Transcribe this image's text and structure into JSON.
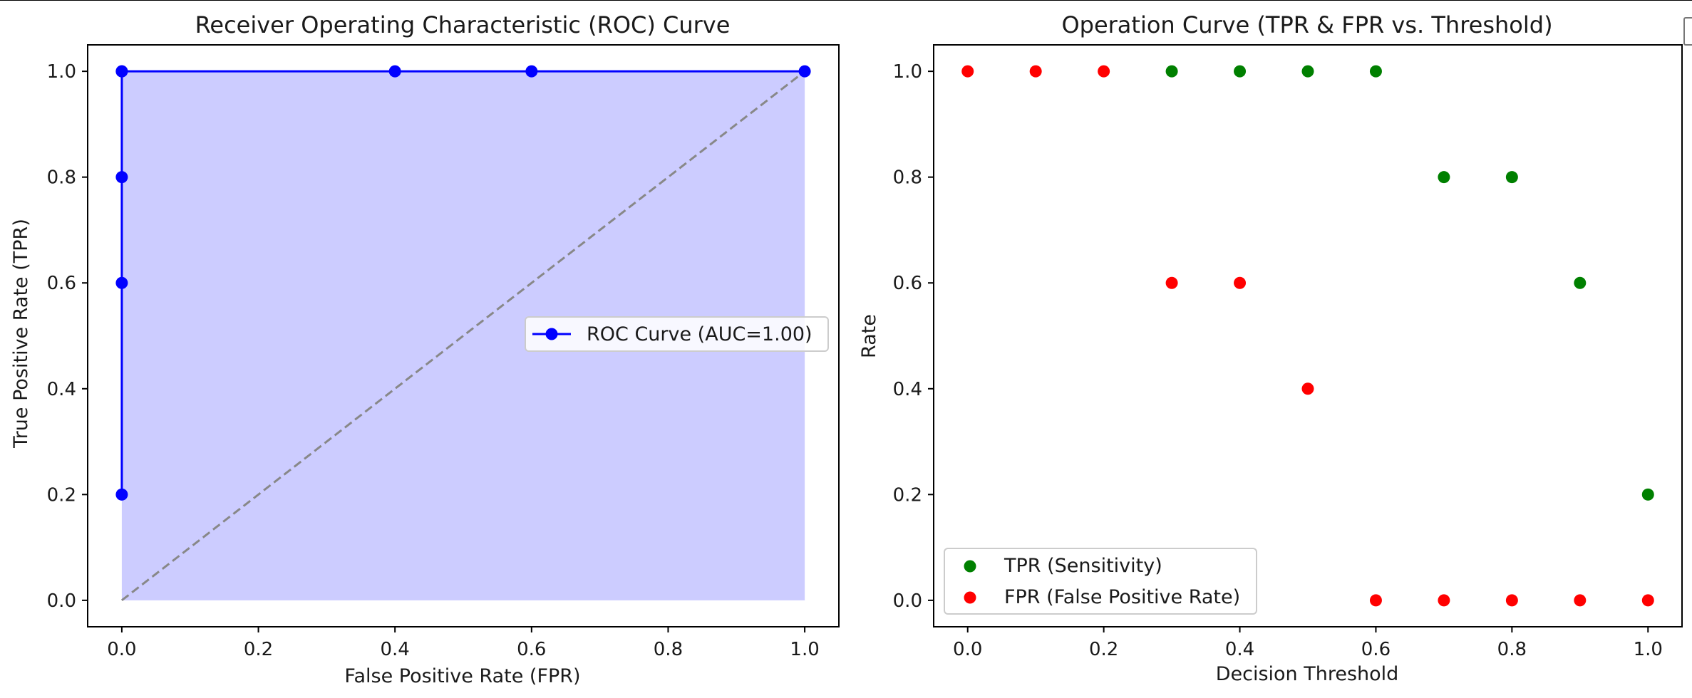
{
  "chart_data": [
    {
      "type": "line",
      "title": "Receiver Operating Characteristic (ROC) Curve",
      "xlabel": "False Positive Rate (FPR)",
      "ylabel": "True Positive Rate (TPR)",
      "xlim": [
        -0.05,
        1.05
      ],
      "ylim": [
        -0.05,
        1.05
      ],
      "xticks": [
        "0.0",
        "0.2",
        "0.4",
        "0.6",
        "0.8",
        "1.0"
      ],
      "yticks": [
        "0.0",
        "0.2",
        "0.4",
        "0.6",
        "0.8",
        "1.0"
      ],
      "grid": false,
      "legend_position": "center-right",
      "series": [
        {
          "name": "ROC Curve (AUC=1.00)",
          "color": "#0000ff",
          "fill_color": "#ccccff",
          "marker": "circle",
          "x": [
            0.0,
            0.0,
            0.0,
            0.0,
            0.0,
            0.4,
            0.6,
            1.0
          ],
          "y": [
            0.2,
            0.6,
            0.8,
            1.0,
            1.0,
            1.0,
            1.0,
            1.0
          ]
        }
      ],
      "reference_line": {
        "x": [
          0.0,
          1.0
        ],
        "y": [
          0.0,
          1.0
        ],
        "color": "#888888",
        "style": "dashed"
      }
    },
    {
      "type": "scatter",
      "title": "Operation Curve (TPR & FPR vs. Threshold)",
      "xlabel": "Decision Threshold",
      "ylabel": "Rate",
      "xlim": [
        -0.05,
        1.05
      ],
      "ylim": [
        -0.05,
        1.05
      ],
      "xticks": [
        "0.0",
        "0.2",
        "0.4",
        "0.6",
        "0.8",
        "1.0"
      ],
      "yticks": [
        "0.0",
        "0.2",
        "0.4",
        "0.6",
        "0.8",
        "1.0"
      ],
      "grid": false,
      "legend_position": "lower-left",
      "series": [
        {
          "name": "TPR (Sensitivity)",
          "color": "#008000",
          "x": [
            0.3,
            0.4,
            0.5,
            0.6,
            0.7,
            0.8,
            0.9,
            1.0
          ],
          "y": [
            1.0,
            1.0,
            1.0,
            1.0,
            0.8,
            0.8,
            0.6,
            0.2
          ]
        },
        {
          "name": "FPR (False Positive Rate)",
          "color": "#ff0000",
          "x": [
            0.0,
            0.1,
            0.2,
            0.3,
            0.4,
            0.5,
            0.6,
            0.7,
            0.8,
            0.9,
            1.0
          ],
          "y": [
            1.0,
            1.0,
            1.0,
            0.6,
            0.6,
            0.4,
            0.0,
            0.0,
            0.0,
            0.0,
            0.0
          ]
        }
      ]
    }
  ]
}
